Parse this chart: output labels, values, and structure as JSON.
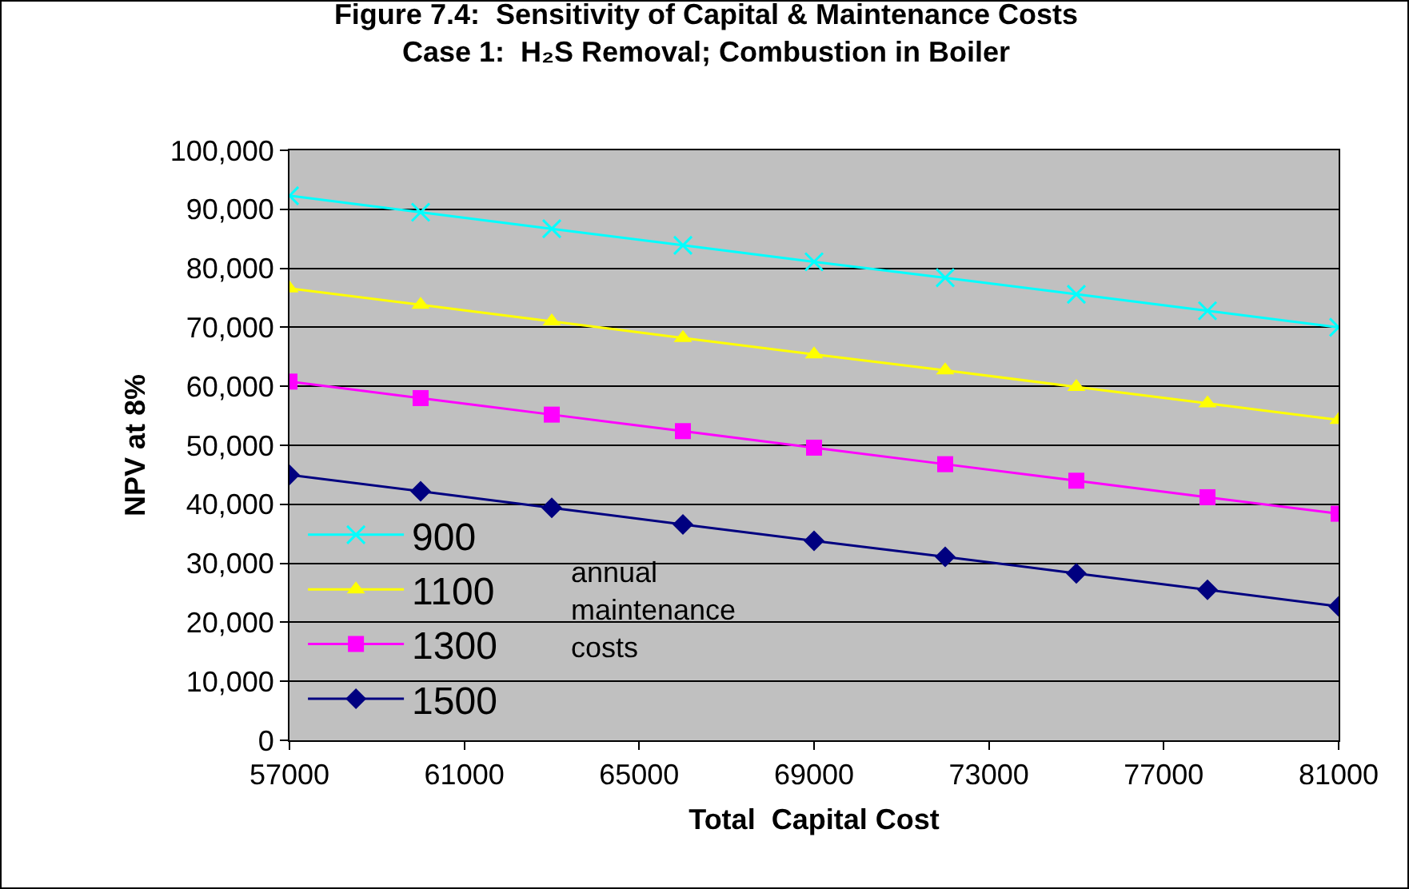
{
  "chart_data": {
    "type": "line",
    "title": "Figure 7.4:  Sensitivity of Capital & Maintenance Costs",
    "subtitle": "Case 1:  H₂S Removal; Combustion in Boiler",
    "xlabel": "Total  Capital Cost",
    "ylabel": "NPV at 8%",
    "x": [
      57000,
      60000,
      63000,
      66000,
      69000,
      72000,
      75000,
      78000,
      81000
    ],
    "series": [
      {
        "name": "900",
        "color": "#00ffff",
        "marker": "cross",
        "values": [
          92300,
          89500,
          86700,
          83900,
          81100,
          78400,
          75600,
          72800,
          70000
        ]
      },
      {
        "name": "1100",
        "color": "#ffff00",
        "marker": "triangle",
        "values": [
          76600,
          73800,
          71000,
          68200,
          65400,
          62700,
          59900,
          57100,
          54300
        ]
      },
      {
        "name": "1300",
        "color": "#ff00ff",
        "marker": "square",
        "values": [
          60800,
          58000,
          55200,
          52400,
          49600,
          46800,
          44000,
          41200,
          38400
        ]
      },
      {
        "name": "1500",
        "color": "#000080",
        "marker": "diamond",
        "values": [
          45000,
          42200,
          39400,
          36600,
          33800,
          31100,
          28300,
          25500,
          22700
        ]
      }
    ],
    "xlim": [
      57000,
      81000
    ],
    "xticks": [
      57000,
      61000,
      65000,
      69000,
      73000,
      77000,
      81000
    ],
    "ylim": [
      0,
      100000
    ],
    "yticks": [
      {
        "value": 0,
        "label": "0"
      },
      {
        "value": 10000,
        "label": "10,000"
      },
      {
        "value": 20000,
        "label": "20,000"
      },
      {
        "value": 30000,
        "label": "30,000"
      },
      {
        "value": 40000,
        "label": "40,000"
      },
      {
        "value": 50000,
        "label": "50,000"
      },
      {
        "value": 60000,
        "label": "60,000"
      },
      {
        "value": 70000,
        "label": "70,000"
      },
      {
        "value": 80000,
        "label": "80,000"
      },
      {
        "value": 90000,
        "label": "90,000"
      },
      {
        "value": 100000,
        "label": "100,000"
      }
    ],
    "grid": "y",
    "legend": "bottom left",
    "line_style": "solid",
    "annotations": [
      "annual\nmaintenance\ncosts"
    ]
  }
}
